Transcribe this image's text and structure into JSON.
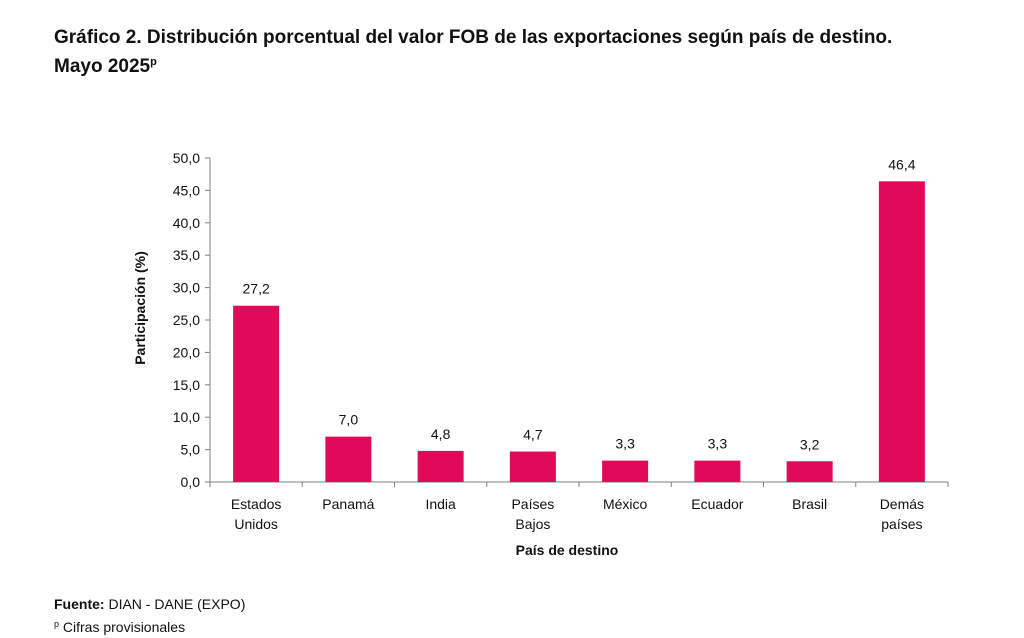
{
  "header": {
    "title_line1": "Gráfico 2. Distribución porcentual del valor FOB de las exportaciones según país de destino.",
    "title_line2": "Mayo 2025",
    "title_superscript": "p"
  },
  "footer": {
    "source_label": "Fuente:",
    "source_text": "DIAN - DANE (EXPO)",
    "note_superscript": "p",
    "note_text": "Cifras provisionales"
  },
  "chart_data": {
    "type": "bar",
    "title": "",
    "xlabel": "País de destino",
    "ylabel": "Participación (%)",
    "categories": [
      [
        "Estados",
        "Unidos"
      ],
      [
        "Panamá"
      ],
      [
        "India"
      ],
      [
        "Países",
        "Bajos"
      ],
      [
        "México"
      ],
      [
        "Ecuador"
      ],
      [
        "Brasil"
      ],
      [
        "Demás",
        "países"
      ]
    ],
    "values": [
      27.2,
      7.0,
      4.8,
      4.7,
      3.3,
      3.3,
      3.2,
      46.4
    ],
    "value_labels": [
      "27,2",
      "7,0",
      "4,8",
      "4,7",
      "3,3",
      "3,3",
      "3,2",
      "46,4"
    ],
    "ylim": [
      0,
      50
    ],
    "yticks": [
      "0,0",
      "5,0",
      "10,0",
      "15,0",
      "20,0",
      "25,0",
      "30,0",
      "35,0",
      "40,0",
      "45,0",
      "50,0"
    ],
    "grid": false,
    "legend": "none",
    "bar_color": "#E0095A"
  }
}
